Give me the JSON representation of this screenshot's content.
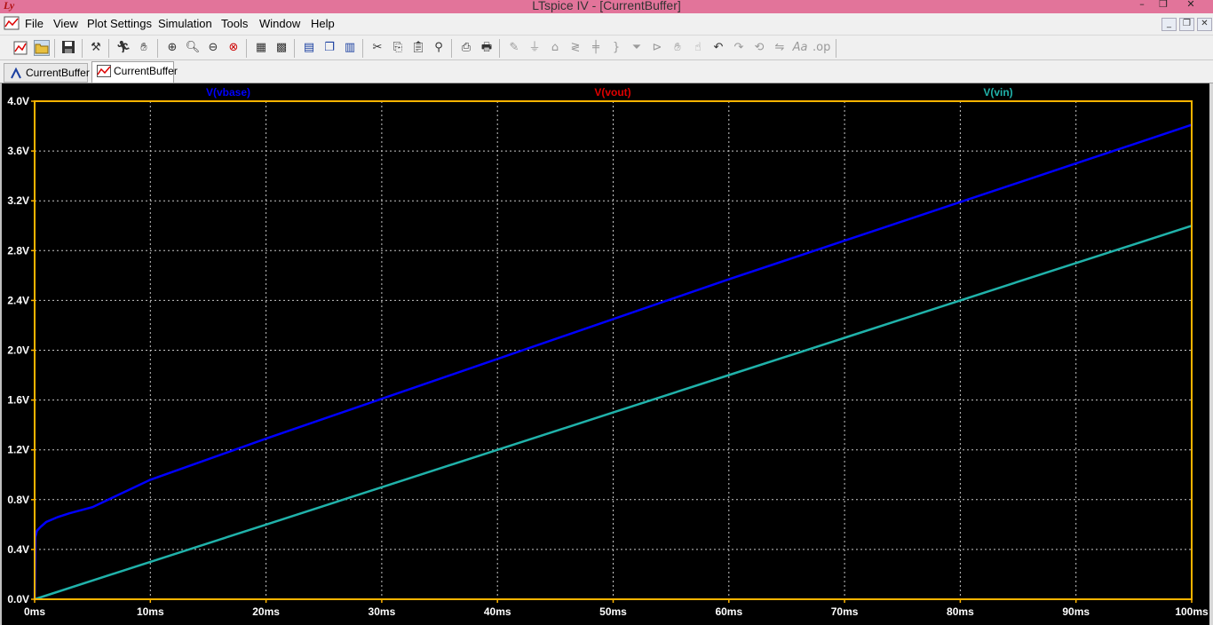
{
  "window": {
    "title": "LTspice IV - [CurrentBuffer]"
  },
  "menu": [
    "File",
    "View",
    "Plot Settings",
    "Simulation",
    "Tools",
    "Window",
    "Help"
  ],
  "tabs": [
    {
      "label": "CurrentBuffer",
      "kind": "schematic",
      "active": false
    },
    {
      "label": "CurrentBuffer",
      "kind": "waveform",
      "active": true
    }
  ],
  "colors": {
    "plot_background": "#000000",
    "axis_frame": "#ffb400",
    "grid": "#c8c8c8",
    "tick_label": "#ffffff",
    "vbase": "#0000ff",
    "vout": "#e00000",
    "vin": "#20b2aa"
  },
  "chart_data": {
    "type": "line",
    "xlabel": "",
    "ylabel": "",
    "xlim": [
      0,
      100
    ],
    "ylim": [
      0,
      4.0
    ],
    "x_ticks": [
      "0ms",
      "10ms",
      "20ms",
      "30ms",
      "40ms",
      "50ms",
      "60ms",
      "70ms",
      "80ms",
      "90ms",
      "100ms"
    ],
    "y_ticks": [
      "0.0V",
      "0.4V",
      "0.8V",
      "1.2V",
      "1.6V",
      "2.0V",
      "2.4V",
      "2.8V",
      "3.2V",
      "3.6V",
      "4.0V"
    ],
    "grid": true,
    "legend": "top",
    "series": [
      {
        "name": "V(vbase)",
        "color": "#0000ff",
        "x": [
          0,
          0.05,
          0.2,
          0.5,
          1,
          2,
          3,
          5,
          10,
          20,
          30,
          40,
          50,
          60,
          70,
          80,
          90,
          100
        ],
        "y": [
          0,
          0.5,
          0.55,
          0.58,
          0.62,
          0.66,
          0.69,
          0.74,
          0.96,
          1.29,
          1.61,
          1.93,
          2.25,
          2.57,
          2.88,
          3.19,
          3.5,
          3.81
        ]
      },
      {
        "name": "V(vout)",
        "color": "#e00000",
        "x": [],
        "y": []
      },
      {
        "name": "V(vin)",
        "color": "#20b2aa",
        "x": [
          0,
          10,
          20,
          30,
          40,
          50,
          60,
          70,
          80,
          90,
          100
        ],
        "y": [
          0,
          0.3,
          0.6,
          0.9,
          1.2,
          1.5,
          1.8,
          2.1,
          2.4,
          2.7,
          3.0
        ]
      }
    ]
  }
}
